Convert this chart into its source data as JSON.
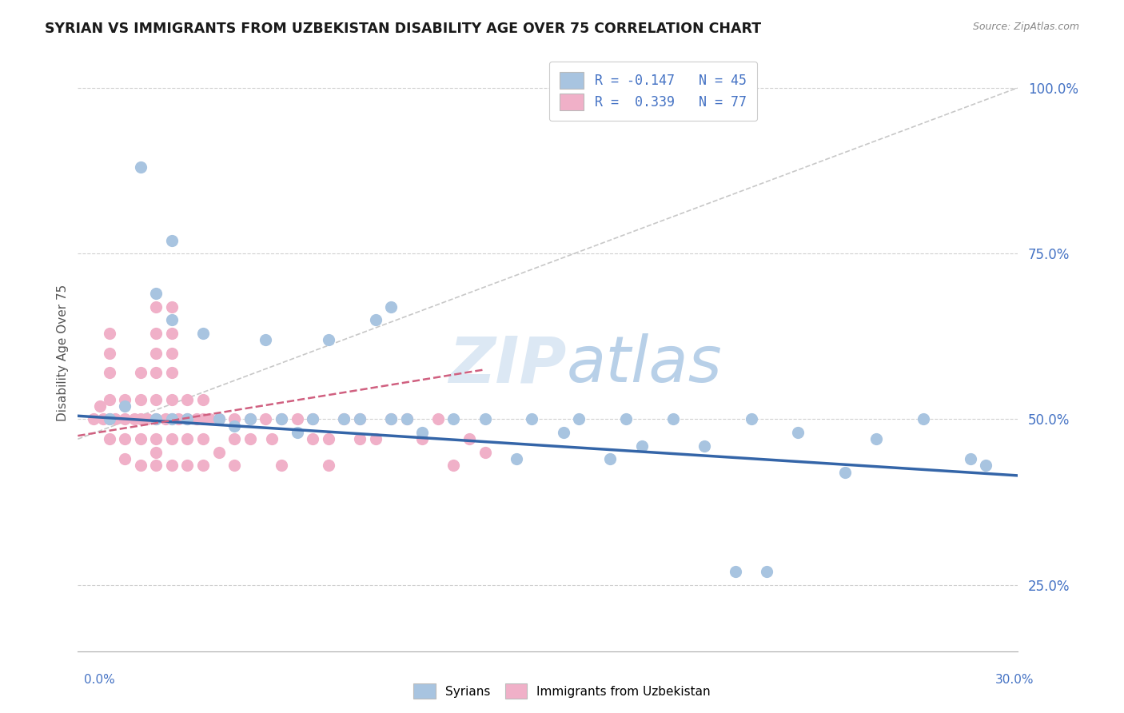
{
  "title": "SYRIAN VS IMMIGRANTS FROM UZBEKISTAN DISABILITY AGE OVER 75 CORRELATION CHART",
  "source": "Source: ZipAtlas.com",
  "ylabel": "Disability Age Over 75",
  "yticks": [
    0.25,
    0.5,
    0.75,
    1.0
  ],
  "ytick_labels": [
    "25.0%",
    "50.0%",
    "75.0%",
    "100.0%"
  ],
  "xlim": [
    0.0,
    0.3
  ],
  "ylim": [
    0.15,
    1.05
  ],
  "legend_r1": "R = -0.147",
  "legend_n1": "N = 45",
  "legend_r2": "R =  0.339",
  "legend_n2": "N = 77",
  "series1_color": "#a8c4e0",
  "series2_color": "#f0b0c8",
  "line1_color": "#3465a8",
  "line2_color": "#d06080",
  "diag_line_color": "#c8c8c8",
  "watermark_color": "#dce8f4",
  "background_color": "#ffffff",
  "syrians_x": [
    0.01,
    0.015,
    0.02,
    0.025,
    0.025,
    0.03,
    0.03,
    0.03,
    0.035,
    0.04,
    0.045,
    0.05,
    0.055,
    0.06,
    0.065,
    0.07,
    0.075,
    0.08,
    0.085,
    0.09,
    0.095,
    0.1,
    0.1,
    0.105,
    0.11,
    0.12,
    0.13,
    0.14,
    0.145,
    0.155,
    0.16,
    0.17,
    0.175,
    0.18,
    0.19,
    0.2,
    0.21,
    0.215,
    0.22,
    0.23,
    0.245,
    0.255,
    0.27,
    0.285,
    0.29
  ],
  "syrians_y": [
    0.5,
    0.52,
    0.88,
    0.69,
    0.5,
    0.77,
    0.65,
    0.5,
    0.5,
    0.63,
    0.5,
    0.49,
    0.5,
    0.62,
    0.5,
    0.48,
    0.5,
    0.62,
    0.5,
    0.5,
    0.65,
    0.67,
    0.5,
    0.5,
    0.48,
    0.5,
    0.5,
    0.44,
    0.5,
    0.48,
    0.5,
    0.44,
    0.5,
    0.46,
    0.5,
    0.46,
    0.27,
    0.5,
    0.27,
    0.48,
    0.42,
    0.47,
    0.5,
    0.44,
    0.43
  ],
  "uzbek_x": [
    0.005,
    0.007,
    0.008,
    0.01,
    0.01,
    0.01,
    0.01,
    0.01,
    0.01,
    0.012,
    0.015,
    0.015,
    0.015,
    0.015,
    0.018,
    0.02,
    0.02,
    0.02,
    0.02,
    0.02,
    0.022,
    0.025,
    0.025,
    0.025,
    0.025,
    0.025,
    0.025,
    0.025,
    0.025,
    0.025,
    0.028,
    0.03,
    0.03,
    0.03,
    0.03,
    0.03,
    0.03,
    0.03,
    0.03,
    0.032,
    0.035,
    0.035,
    0.035,
    0.035,
    0.038,
    0.04,
    0.04,
    0.04,
    0.04,
    0.042,
    0.045,
    0.045,
    0.05,
    0.05,
    0.05,
    0.055,
    0.055,
    0.06,
    0.062,
    0.065,
    0.065,
    0.07,
    0.075,
    0.075,
    0.08,
    0.08,
    0.085,
    0.09,
    0.09,
    0.095,
    0.1,
    0.105,
    0.11,
    0.115,
    0.12,
    0.125,
    0.13
  ],
  "uzbek_y": [
    0.5,
    0.52,
    0.5,
    0.47,
    0.5,
    0.53,
    0.57,
    0.6,
    0.63,
    0.5,
    0.44,
    0.47,
    0.5,
    0.53,
    0.5,
    0.43,
    0.47,
    0.5,
    0.53,
    0.57,
    0.5,
    0.43,
    0.45,
    0.47,
    0.5,
    0.53,
    0.57,
    0.6,
    0.63,
    0.67,
    0.5,
    0.43,
    0.47,
    0.5,
    0.53,
    0.57,
    0.6,
    0.63,
    0.67,
    0.5,
    0.43,
    0.47,
    0.5,
    0.53,
    0.5,
    0.43,
    0.47,
    0.5,
    0.53,
    0.5,
    0.45,
    0.5,
    0.43,
    0.47,
    0.5,
    0.47,
    0.5,
    0.5,
    0.47,
    0.43,
    0.5,
    0.5,
    0.47,
    0.5,
    0.43,
    0.47,
    0.5,
    0.47,
    0.5,
    0.47,
    0.5,
    0.5,
    0.47,
    0.5,
    0.43,
    0.47,
    0.45
  ]
}
